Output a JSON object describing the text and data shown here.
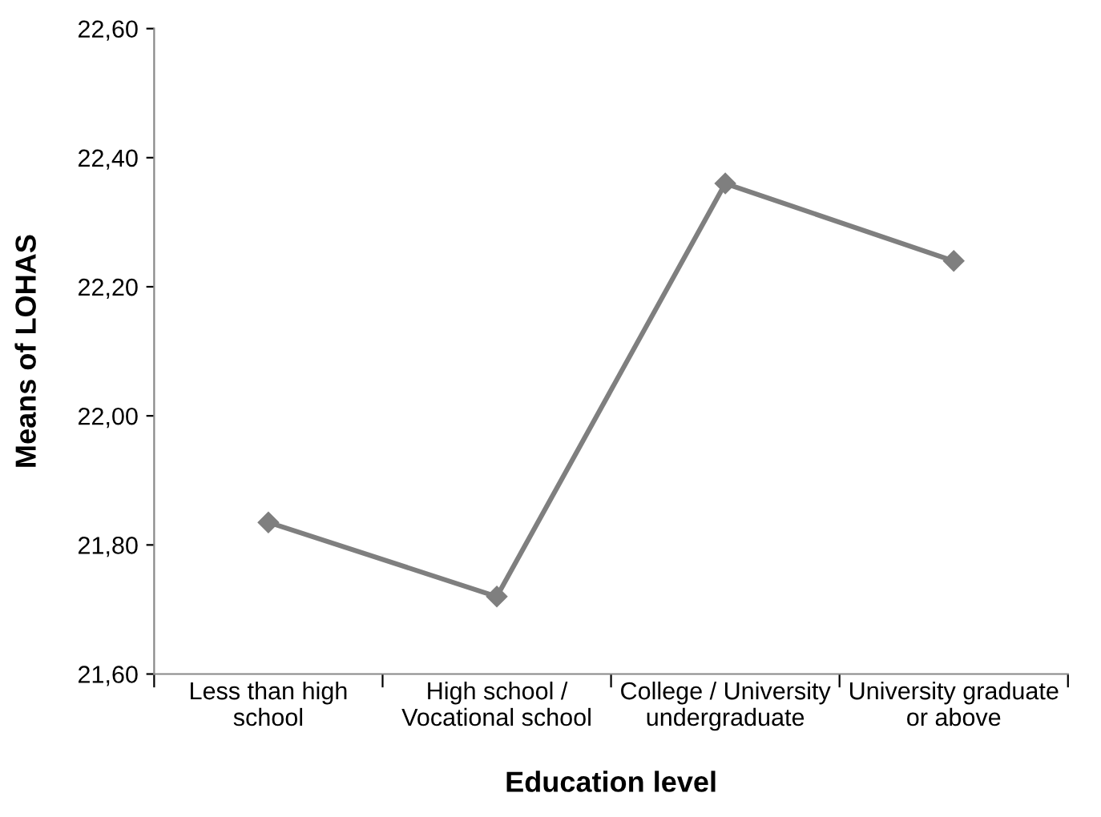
{
  "chart_data": {
    "type": "line",
    "xlabel": "Education level",
    "ylabel": "Means of LOHAS",
    "categories": [
      "Less than high\nschool",
      "High school /\nVocational school",
      "College / University\nundergraduate",
      "University graduate\nor above"
    ],
    "series": [
      {
        "color": "#7f7f7f",
        "values": [
          21.835,
          21.72,
          22.36,
          22.24
        ]
      }
    ],
    "ylim": [
      21.6,
      22.6
    ],
    "yticks": [
      {
        "value": 21.6,
        "label": "21,60"
      },
      {
        "value": 21.8,
        "label": "21,80"
      },
      {
        "value": 22.0,
        "label": "22,00"
      },
      {
        "value": 22.2,
        "label": "22,20"
      },
      {
        "value": 22.4,
        "label": "22,40"
      },
      {
        "value": 22.6,
        "label": "22,60"
      }
    ],
    "grid": false,
    "legend": false,
    "marker": "diamond",
    "line_style": "solid"
  }
}
